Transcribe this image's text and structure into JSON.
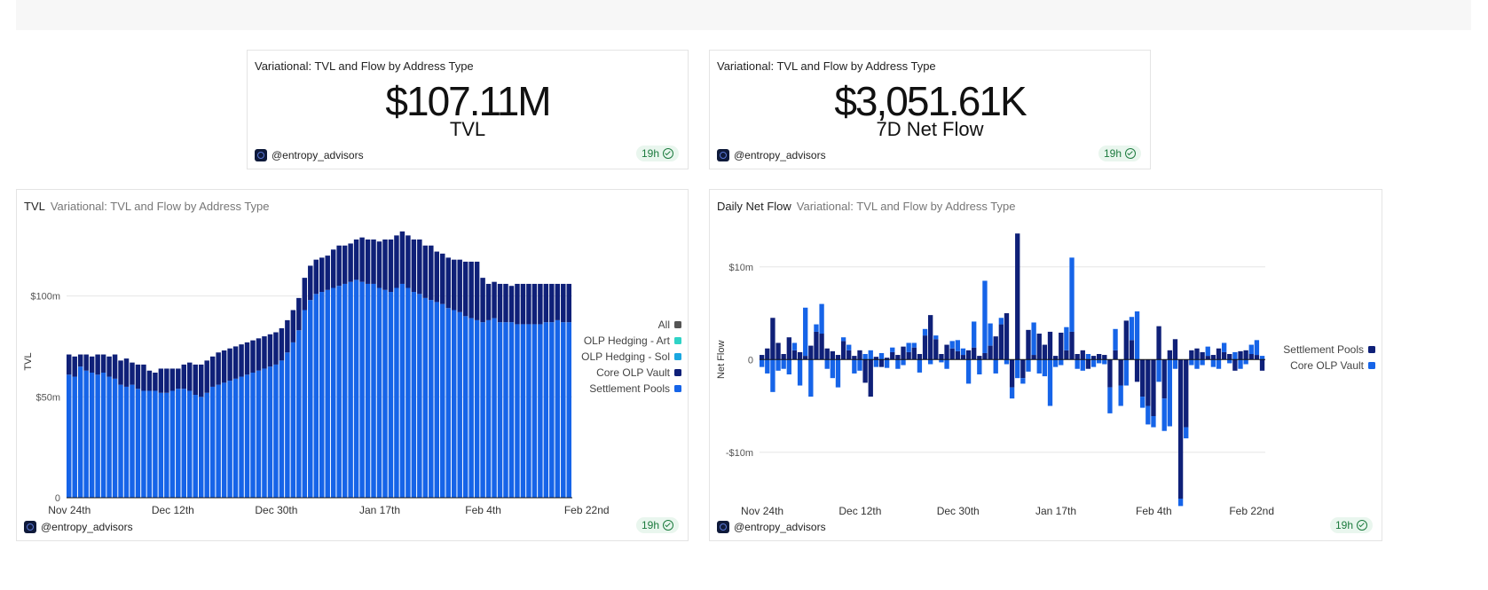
{
  "counters": [
    {
      "title": "Variational: TVL and Flow by Address Type",
      "value": "$107.11M",
      "label": "TVL",
      "author": "@entropy_advisors",
      "age": "19h"
    },
    {
      "title": "Variational: TVL and Flow by Address Type",
      "value": "$3,051.61K",
      "label": "7D Net Flow",
      "author": "@entropy_advisors",
      "age": "19h"
    }
  ],
  "charts": [
    {
      "title": "TVL",
      "subtitle": "Variational: TVL and Flow by Address Type",
      "author": "@entropy_advisors",
      "age": "19h"
    },
    {
      "title": "Daily Net Flow",
      "subtitle": "Variational: TVL and Flow by Address Type",
      "author": "@entropy_advisors",
      "age": "19h"
    }
  ],
  "colors": {
    "settlement": "#1664e8",
    "core": "#0f2078",
    "art": "#2fd3c6",
    "sol": "#1aa7e0",
    "all": "#555555",
    "grid": "#e6e6e6",
    "axis": "#111111"
  },
  "chart_data": [
    {
      "type": "bar",
      "stacked": true,
      "ylabel": "TVL",
      "ylim": [
        0,
        135
      ],
      "yticks": [
        "0",
        "$50m",
        "$100m"
      ],
      "ytick_values": [
        0,
        50,
        100
      ],
      "xticks": [
        "Nov 24th",
        "Dec 12th",
        "Dec 30th",
        "Jan 17th",
        "Feb 4th",
        "Feb 22nd"
      ],
      "xtick_index": [
        0,
        18,
        36,
        54,
        72,
        90
      ],
      "legend": [
        "All",
        "OLP Hedging - Art",
        "OLP Hedging - Sol",
        "Core OLP Vault",
        "Settlement Pools"
      ],
      "legend_position": "right",
      "grid": true,
      "series": [
        {
          "name": "Settlement Pools",
          "values": [
            61,
            60,
            65,
            63,
            62,
            61,
            62,
            60,
            59,
            56,
            55,
            56,
            54,
            53,
            53,
            53,
            52,
            52,
            53,
            54,
            54,
            53,
            51,
            50,
            52,
            55,
            56,
            57,
            58,
            59,
            60,
            61,
            62,
            63,
            64,
            65,
            66,
            68,
            72,
            77,
            83,
            93,
            98,
            101,
            102,
            103,
            104,
            105,
            106,
            107,
            108,
            107,
            106,
            106,
            104,
            103,
            102,
            104,
            106,
            104,
            102,
            101,
            99,
            98,
            97,
            96,
            94,
            93,
            92,
            90,
            89,
            88,
            87,
            88,
            89,
            87,
            87,
            87,
            86,
            86,
            86,
            86,
            86,
            87,
            87,
            88,
            87,
            87
          ]
        },
        {
          "name": "Core OLP Vault",
          "values": [
            10,
            10,
            6,
            8,
            8,
            10,
            9,
            10,
            12,
            12,
            14,
            11,
            12,
            13,
            10,
            9,
            12,
            12,
            11,
            10,
            12,
            14,
            15,
            16,
            16,
            15,
            16,
            16,
            16,
            16,
            16,
            16,
            16,
            16,
            16,
            16,
            16,
            16,
            16,
            16,
            16,
            16,
            17,
            17,
            17,
            17,
            19,
            20,
            19,
            19,
            20,
            22,
            22,
            22,
            23,
            25,
            26,
            26,
            26,
            26,
            26,
            27,
            26,
            27,
            25,
            25,
            25,
            25,
            26,
            27,
            28,
            29,
            22,
            18,
            18,
            19,
            19,
            18,
            20,
            20,
            20,
            20,
            20,
            19,
            19,
            18,
            19,
            19
          ]
        }
      ]
    },
    {
      "type": "bar",
      "stacked": true,
      "ylabel": "Net Flow",
      "ylim": [
        -15,
        14
      ],
      "yticks": [
        "-$10m",
        "0",
        "$10m"
      ],
      "ytick_values": [
        -10,
        0,
        10
      ],
      "xticks": [
        "Nov 24th",
        "Dec 12th",
        "Dec 30th",
        "Jan 17th",
        "Feb 4th",
        "Feb 22nd"
      ],
      "xtick_index": [
        0,
        18,
        36,
        54,
        72,
        90
      ],
      "legend": [
        "Settlement Pools",
        "Core OLP Vault"
      ],
      "legend_position": "right",
      "grid": true,
      "series": [
        {
          "name": "Settlement Pools",
          "values": [
            0.5,
            1.2,
            4.5,
            1.8,
            0.6,
            2.4,
            1.0,
            0.8,
            0.4,
            1.5,
            3.0,
            2.8,
            1.2,
            0.9,
            0.5,
            2.0,
            1.0,
            0.4,
            1.0,
            -2.5,
            -4.0,
            0.3,
            -0.8,
            0.2,
            0.8,
            0.5,
            1.4,
            0.8,
            1.3,
            0.6,
            2.6,
            4.8,
            2.2,
            0.6,
            1.6,
            1.2,
            0.9,
            0.5,
            1.0,
            1.3,
            0.4,
            0.7,
            1.5,
            2.5,
            3.8,
            5.0,
            -3.0,
            13.6,
            -2.0,
            3.2,
            0.5,
            2.8,
            1.6,
            3.0,
            0.4,
            2.9,
            1.0,
            3.0,
            0.6,
            1.0,
            -1.0,
            0.4,
            0.6,
            0.5,
            -3.0,
            1.0,
            -2.8,
            4.2,
            2.1,
            -2.4,
            -4.0,
            -5.0,
            -6.1,
            3.6,
            -4.2,
            1.0,
            2.2,
            -15.0,
            -7.3,
            1.0,
            1.2,
            0.8,
            0.4,
            0.5,
            1.2,
            0.8,
            0.6,
            -1.2,
            0.9,
            1.0,
            0.6,
            0.5,
            -1.2
          ]
        },
        {
          "name": "Core OLP Vault",
          "values": [
            -0.8,
            -1.5,
            -3.5,
            -1.2,
            -1.0,
            -1.6,
            0.8,
            -2.8,
            5.2,
            -4.0,
            0.8,
            3.2,
            -1.0,
            -2.0,
            -3.0,
            0.4,
            0.6,
            -1.5,
            -1.2,
            0.6,
            1.0,
            -0.8,
            0.7,
            -0.9,
            0.5,
            -1.0,
            -0.6,
            1.0,
            0.5,
            -1.4,
            0.7,
            -0.5,
            0.4,
            -0.3,
            -1.0,
            0.8,
            1.2,
            0.7,
            -2.6,
            2.8,
            -1.6,
            7.8,
            2.4,
            -1.5,
            0.7,
            -0.5,
            -1.2,
            -2.0,
            -0.6,
            -1.3,
            3.5,
            -1.5,
            -1.8,
            -5.0,
            -0.8,
            -0.6,
            2.5,
            8.0,
            -1.0,
            -1.2,
            0.6,
            -0.8,
            -0.4,
            -0.5,
            -2.8,
            2.3,
            -2.2,
            -2.8,
            2.5,
            5.2,
            -1.2,
            -2.0,
            -1.2,
            -2.4,
            -3.5,
            -7.2,
            -1.0,
            -0.8,
            -1.2,
            -0.6,
            -1.0,
            -0.6,
            1.0,
            -0.8,
            -1.0,
            1.0,
            -0.4,
            0.8,
            -1.0,
            -0.5,
            1.0,
            1.6,
            0.4
          ]
        }
      ]
    }
  ]
}
